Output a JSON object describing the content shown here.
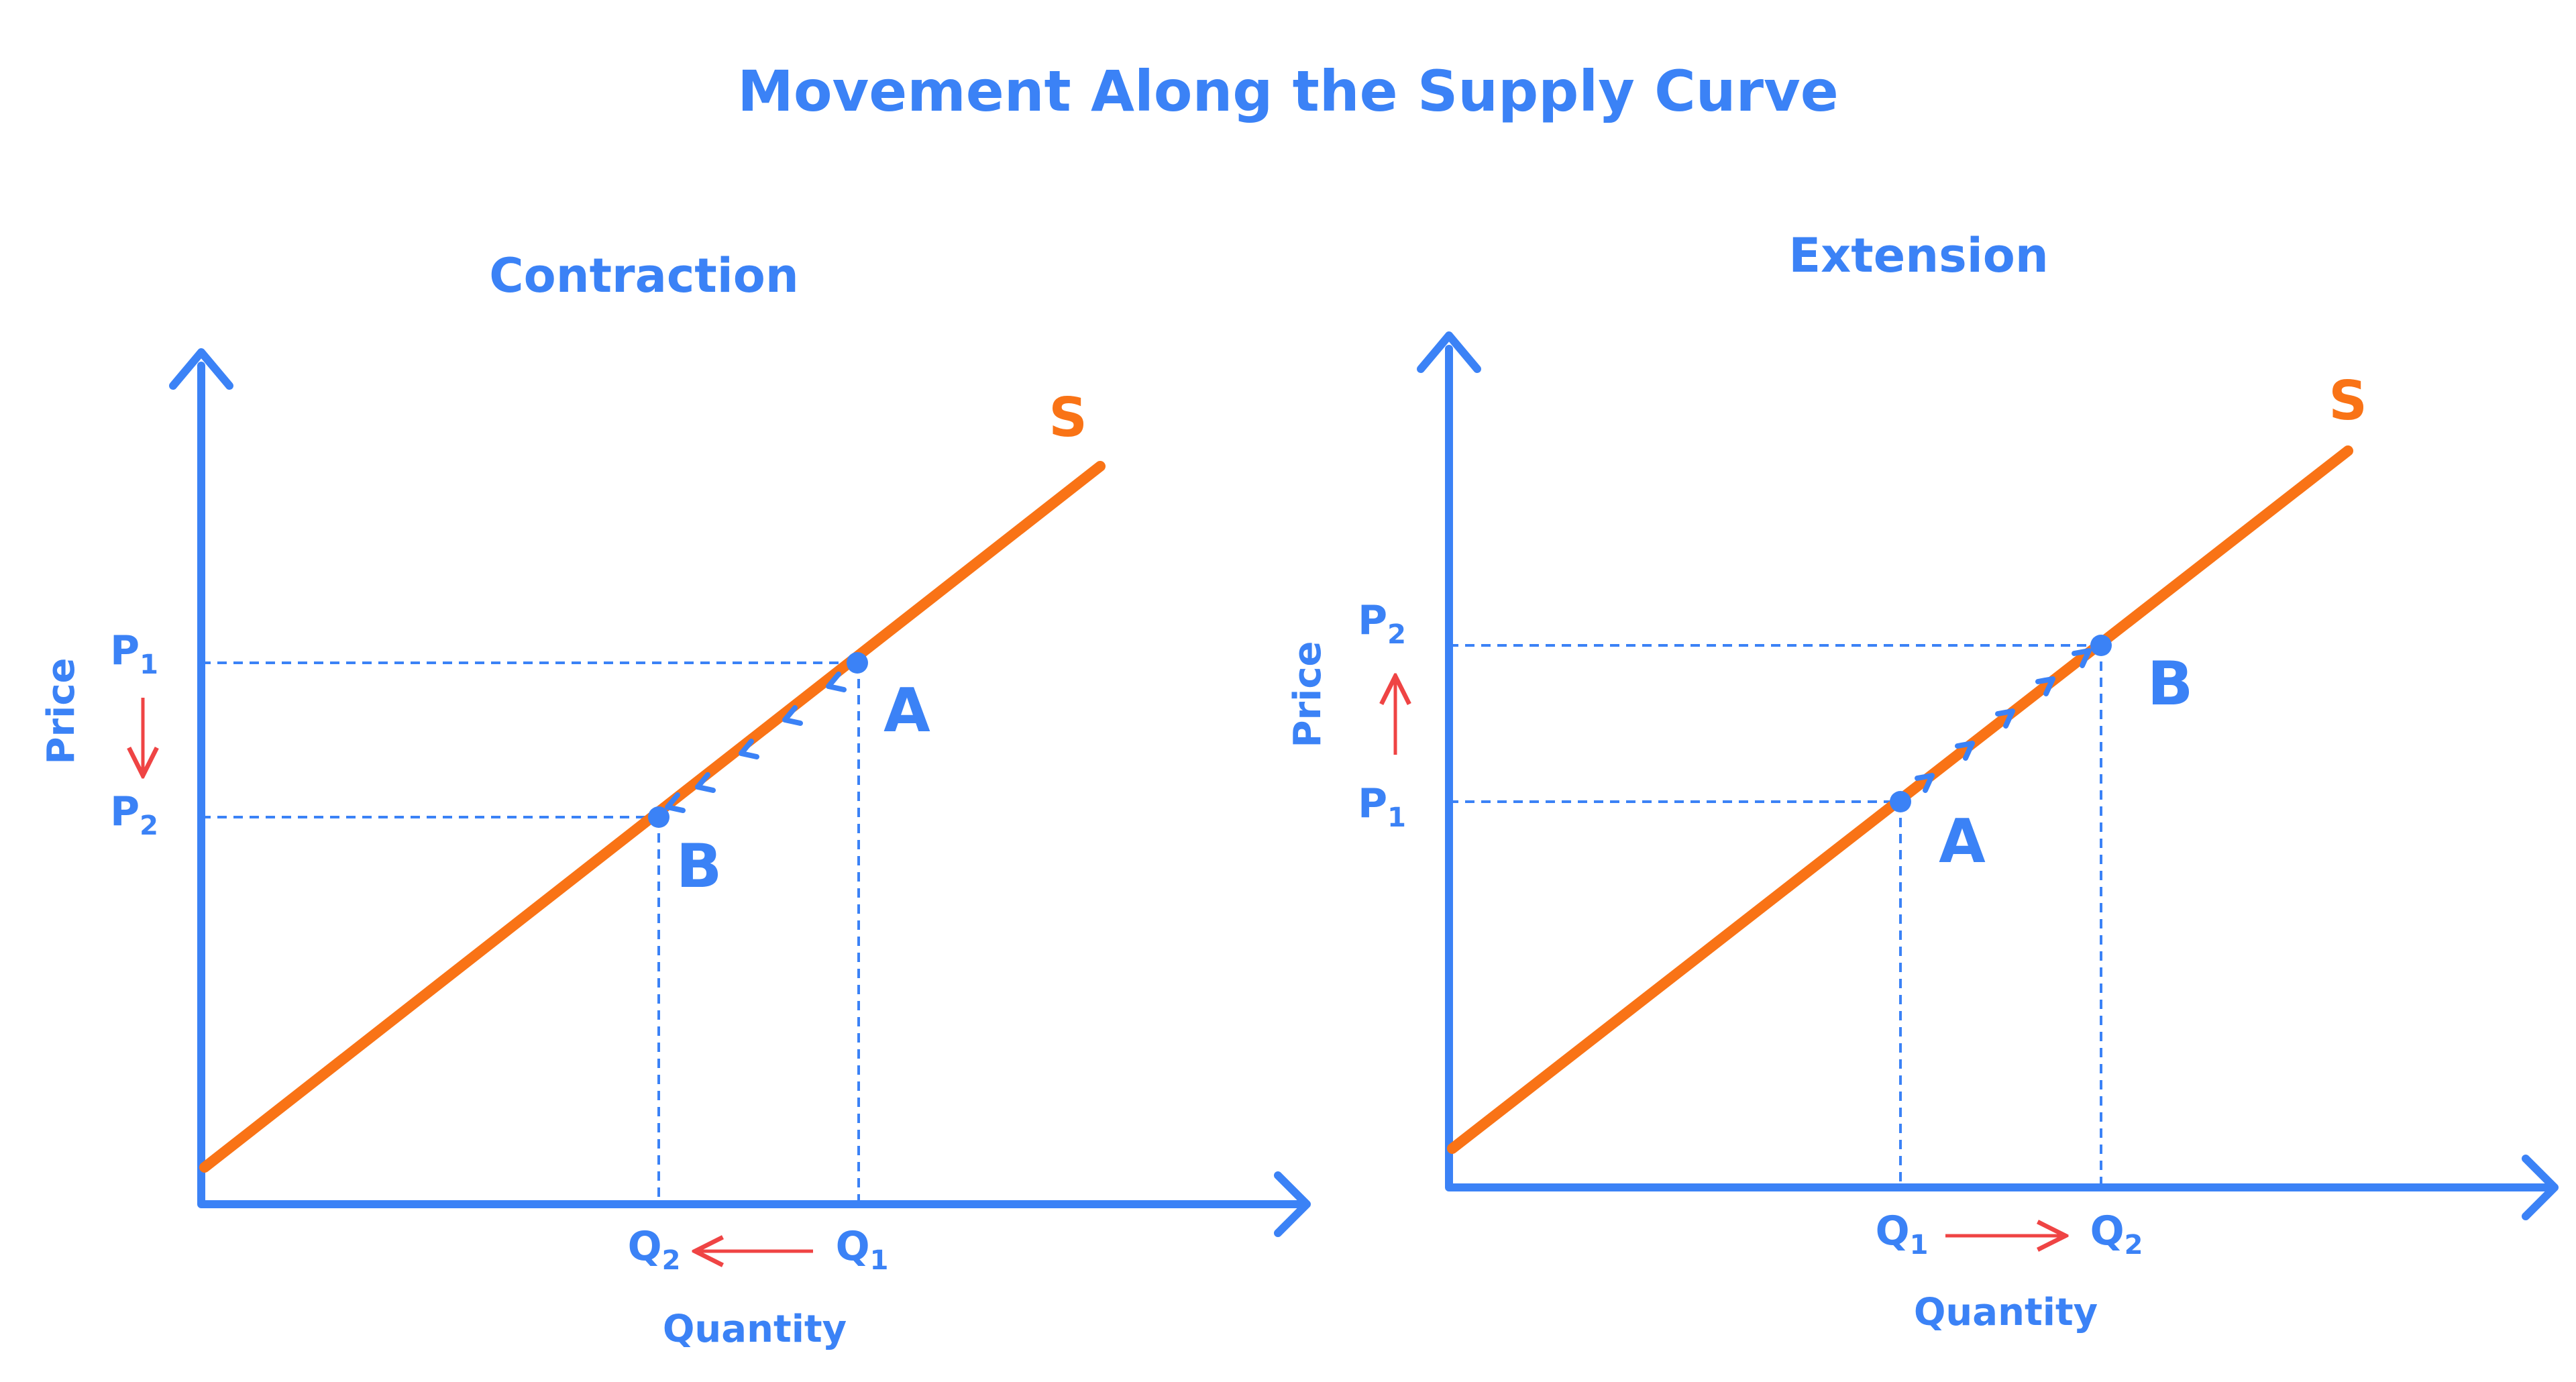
{
  "title": "Movement Along the Supply Curve",
  "colors": {
    "axis": "#3b82f6",
    "curve": "#f97316",
    "change_arrow": "#ef4444",
    "guide": "#3b82f6"
  },
  "panels": [
    {
      "title": "Contraction",
      "x_axis_label": "Quantity",
      "y_axis_label": "Price",
      "curve_label": "S",
      "direction": "down",
      "points": [
        {
          "label": "A",
          "price_label": "P",
          "price_sub": "1",
          "qty_label": "Q",
          "qty_sub": "1"
        },
        {
          "label": "B",
          "price_label": "P",
          "price_sub": "2",
          "qty_label": "Q",
          "qty_sub": "2"
        }
      ]
    },
    {
      "title": "Extension",
      "x_axis_label": "Quantity",
      "y_axis_label": "Price",
      "curve_label": "S",
      "direction": "up",
      "points": [
        {
          "label": "A",
          "price_label": "P",
          "price_sub": "1",
          "qty_label": "Q",
          "qty_sub": "1"
        },
        {
          "label": "B",
          "price_label": "P",
          "price_sub": "2",
          "qty_label": "Q",
          "qty_sub": "2"
        }
      ]
    }
  ]
}
